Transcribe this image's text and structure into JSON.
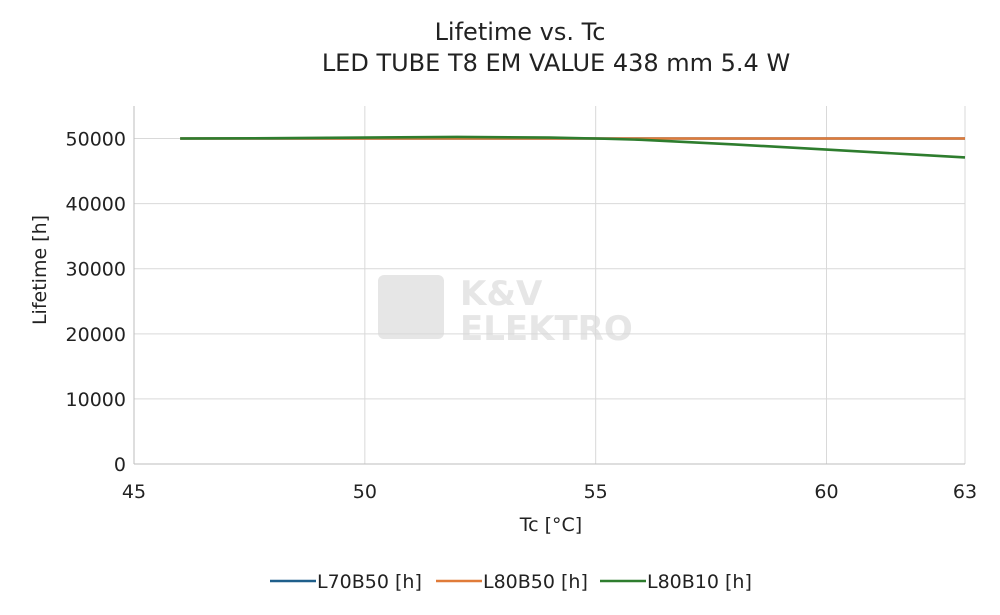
{
  "chart_data": {
    "type": "line",
    "title": "Lifetime vs. Tc",
    "subtitle": "LED TUBE T8 EM VALUE 438 mm 5.4 W",
    "xlabel": "Tc [°C]",
    "ylabel": "Lifetime [h]",
    "xlim": [
      45,
      63
    ],
    "ylim": [
      0,
      55000
    ],
    "x_ticks": [
      45,
      50,
      55,
      60,
      63
    ],
    "y_ticks": [
      0,
      10000,
      20000,
      30000,
      40000,
      50000
    ],
    "grid": true,
    "legend_position": "bottom",
    "watermark": {
      "line1": "K&V",
      "line2": "ELEKTRO"
    },
    "series": [
      {
        "name": "L70B50 [h]",
        "color": "#1f5f8b",
        "x": [
          46,
          50,
          55,
          60,
          63
        ],
        "y": [
          50000,
          50000,
          50000,
          50000,
          50000
        ]
      },
      {
        "name": "L80B50 [h]",
        "color": "#e07b39",
        "x": [
          46,
          50,
          55,
          60,
          63
        ],
        "y": [
          50000,
          50000,
          50000,
          50000,
          50000
        ]
      },
      {
        "name": "L80B10 [h]",
        "color": "#2e7d2e",
        "x": [
          46,
          48,
          50,
          52,
          54,
          55,
          56,
          58,
          60,
          62,
          63
        ],
        "y": [
          50000,
          50050,
          50150,
          50250,
          50150,
          50000,
          49800,
          49100,
          48300,
          47500,
          47100
        ]
      }
    ]
  }
}
